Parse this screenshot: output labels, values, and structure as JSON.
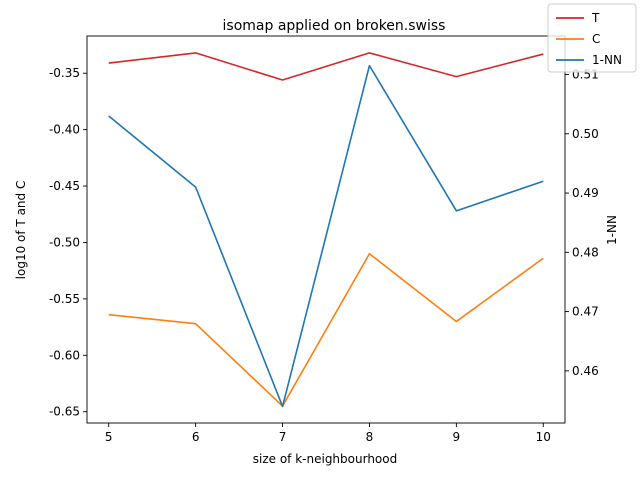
{
  "chart_data": {
    "type": "line",
    "title": "isomap applied on broken.swiss",
    "xlabel": "size of k-neighbourhood",
    "ylabel_left": "log10 of T and C",
    "ylabel_right": "1-NN",
    "x": [
      5,
      6,
      7,
      8,
      9,
      10
    ],
    "xlim": [
      4.75,
      10.25
    ],
    "ylim_left": [
      -0.66,
      -0.317
    ],
    "ylim_right": [
      0.4512,
      0.5165
    ],
    "x_ticks": [
      "5",
      "6",
      "7",
      "8",
      "9",
      "10"
    ],
    "y_left_ticks": [
      "-0.35",
      "-0.40",
      "-0.45",
      "-0.50",
      "-0.55",
      "-0.60",
      "-0.65"
    ],
    "y_left_tick_values": [
      -0.35,
      -0.4,
      -0.45,
      -0.5,
      -0.55,
      -0.6,
      -0.65
    ],
    "y_right_ticks": [
      "0.46",
      "0.47",
      "0.48",
      "0.49",
      "0.50",
      "0.51"
    ],
    "y_right_tick_values": [
      0.46,
      0.47,
      0.48,
      0.49,
      0.5,
      0.51
    ],
    "series": [
      {
        "name": "T",
        "axis": "left",
        "color": "#d62728",
        "values": [
          -0.341,
          -0.332,
          -0.356,
          -0.332,
          -0.353,
          -0.333
        ]
      },
      {
        "name": "C",
        "axis": "left",
        "color": "#ff7f0e",
        "values": [
          -0.564,
          -0.572,
          -0.645,
          -0.51,
          -0.57,
          -0.514
        ]
      },
      {
        "name": "1-NN",
        "axis": "right",
        "color": "#1f77b4",
        "values": [
          0.503,
          0.491,
          0.454,
          0.5115,
          0.487,
          0.492
        ]
      }
    ],
    "legend_position": "top-right",
    "grid": false
  }
}
